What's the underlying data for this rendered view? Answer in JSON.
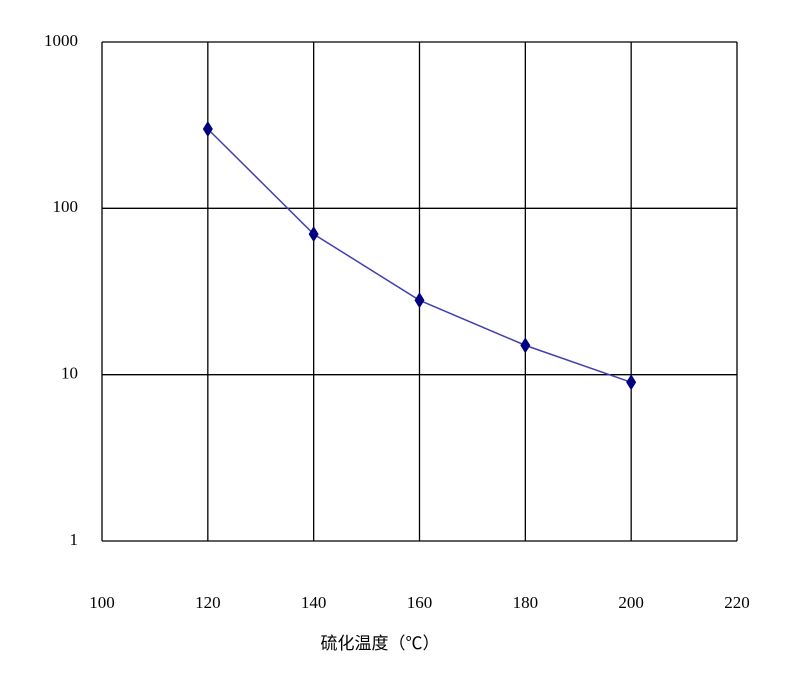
{
  "chart_data": {
    "type": "line",
    "xlabel": "硫化温度（℃）",
    "x": [
      120,
      140,
      160,
      180,
      200
    ],
    "series": [
      {
        "name": null,
        "color": "#000080",
        "line_color": "#4040b0",
        "values": [
          300,
          70,
          28,
          15,
          9
        ]
      }
    ],
    "xlim": [
      100,
      220
    ],
    "xticks": [
      100,
      120,
      140,
      160,
      180,
      200,
      220
    ],
    "ylim": [
      1,
      1000
    ],
    "yticks": [
      1,
      10,
      100,
      1000
    ],
    "log_y": true,
    "grid": true
  }
}
